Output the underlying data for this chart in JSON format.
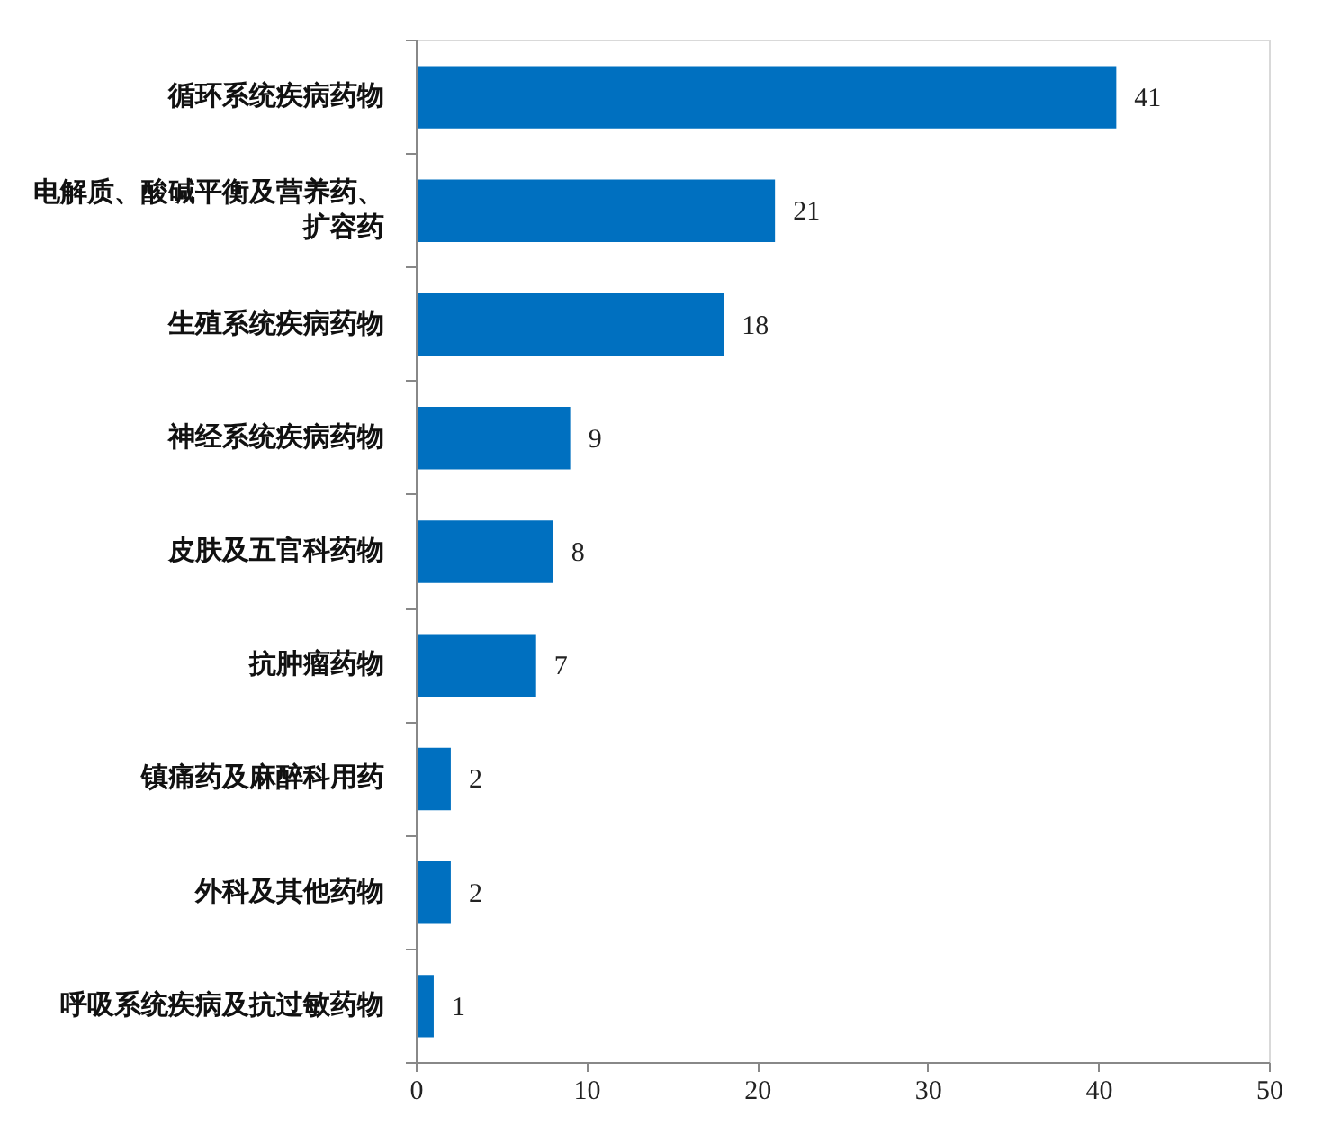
{
  "chart_data": {
    "type": "bar",
    "orientation": "horizontal",
    "categories": [
      "循环系统疾病药物",
      "电解质、酸碱平衡及营养药、扩容药",
      "生殖系统疾病药物",
      "神经系统疾病药物",
      "皮肤及五官科药物",
      "抗肿瘤药物",
      "镇痛药及麻醉科用药",
      "外科及其他药物",
      "呼吸系统疾病及抗过敏药物"
    ],
    "values": [
      41,
      21,
      18,
      9,
      8,
      7,
      2,
      2,
      1
    ],
    "color": "#0070c0",
    "xlim": [
      0,
      50
    ],
    "xticks": [
      0,
      10,
      20,
      30,
      40,
      50
    ],
    "data_labels": true,
    "grid": false
  }
}
